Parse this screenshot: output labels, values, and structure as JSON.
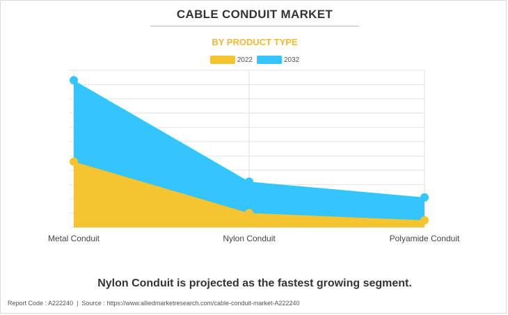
{
  "title": "CABLE CONDUIT MARKET",
  "subtitle": "BY PRODUCT TYPE",
  "headline": "Nylon Conduit is projected as the fastest growing segment.",
  "footer": {
    "report_code": "Report Code : A222240",
    "separator": "|",
    "source": "Source : https://www.alliedmarketresearch.com/cable-conduit-market-A222240"
  },
  "colors": {
    "series_2022": "#f5c431",
    "series_2032": "#33c5fc",
    "grid": "#e2e2e2",
    "text": "#333333",
    "subtitle": "#f5b82e"
  },
  "chart_data": {
    "type": "area",
    "categories": [
      "Metal Conduit",
      "Nylon Conduit",
      "Polyamide Conduit"
    ],
    "series": [
      {
        "name": "2022",
        "values": [
          4.6,
          1.0,
          0.5
        ]
      },
      {
        "name": "2032",
        "values": [
          10.3,
          3.2,
          2.1
        ]
      }
    ],
    "ylim": [
      0,
      11
    ],
    "grid": true,
    "y_tick_labels_visible": false,
    "legend_position": "top-center"
  }
}
